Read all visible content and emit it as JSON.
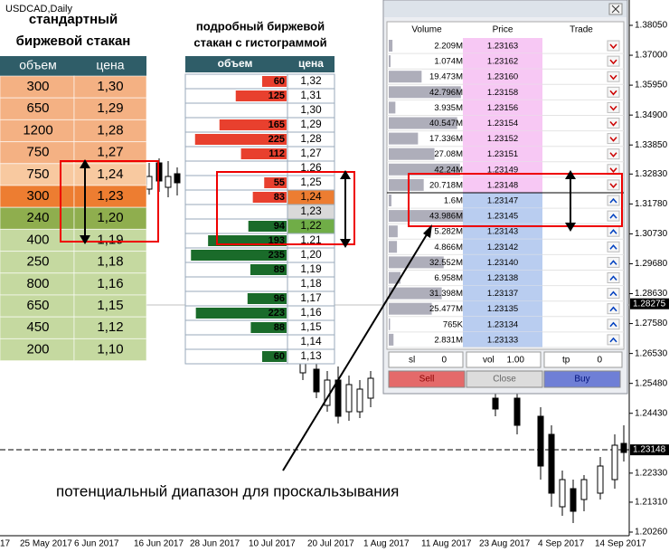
{
  "chart": {
    "symbol": "USDCAD,Daily",
    "price_labels": [
      {
        "value": 1.3805,
        "label": "1.38050"
      },
      {
        "value": 1.37,
        "label": "1.37000"
      },
      {
        "value": 1.3595,
        "label": "1.35950"
      },
      {
        "value": 1.349,
        "label": "1.34900"
      },
      {
        "value": 1.3385,
        "label": "1.33850"
      },
      {
        "value": 1.3283,
        "label": "1.32830"
      },
      {
        "value": 1.3178,
        "label": "1.31780"
      },
      {
        "value": 1.3073,
        "label": "1.30730"
      },
      {
        "value": 1.2968,
        "label": "1.29680"
      },
      {
        "value": 1.2863,
        "label": "1.28630"
      },
      {
        "value": 1.2758,
        "label": "1.27580"
      },
      {
        "value": 1.2653,
        "label": "1.26530"
      },
      {
        "value": 1.2548,
        "label": "1.25480"
      },
      {
        "value": 1.2443,
        "label": "1.24430"
      },
      {
        "value": 1.2233,
        "label": "1.22330"
      },
      {
        "value": 1.2131,
        "label": "1.21310"
      },
      {
        "value": 1.2026,
        "label": "1.20260"
      }
    ],
    "current_price": {
      "value": 1.28275,
      "label": "1.28275"
    },
    "bid_price": {
      "value": 1.23148,
      "label": "1.23148"
    },
    "dates": [
      "17",
      "25 May 2017",
      "6 Jun 2017",
      "16 Jun 2017",
      "28 Jun 2017",
      "10 Jul 2017",
      "20 Jul 2017",
      "1 Aug 2017",
      "11 Aug 2017",
      "23 Aug 2017",
      "4 Sep 2017",
      "14 Sep 2017"
    ]
  },
  "standard_book": {
    "title_lines": [
      "стандартный",
      "биржевой стакан"
    ],
    "headers": [
      "объем",
      "цена"
    ],
    "rows": [
      {
        "volume": 300,
        "price": "1,30",
        "color": "#f4b183"
      },
      {
        "volume": 650,
        "price": "1,29",
        "color": "#f4b183"
      },
      {
        "volume": 1200,
        "price": "1,28",
        "color": "#f4b183"
      },
      {
        "volume": 750,
        "price": "1,27",
        "color": "#f4b183"
      },
      {
        "volume": 750,
        "price": "1,24",
        "color": "#f8c9a0"
      },
      {
        "volume": 300,
        "price": "1,23",
        "color": "#ed7d31"
      },
      {
        "volume": 240,
        "price": "1,20",
        "color": "#8fae4e"
      },
      {
        "volume": 400,
        "price": "1,19",
        "color": "#c5d9a0"
      },
      {
        "volume": 250,
        "price": "1,18",
        "color": "#c5d9a0"
      },
      {
        "volume": 800,
        "price": "1,16",
        "color": "#c5d9a0"
      },
      {
        "volume": 650,
        "price": "1,15",
        "color": "#c5d9a0"
      },
      {
        "volume": 450,
        "price": "1,12",
        "color": "#c5d9a0"
      },
      {
        "volume": 200,
        "price": "1,10",
        "color": "#c5d9a0"
      }
    ]
  },
  "detailed_book": {
    "title_lines": [
      "подробный биржевой",
      "стакан с гистограммой"
    ],
    "headers": [
      "объем",
      "цена"
    ],
    "ask_color": "#e8402e",
    "bid_color": "#1a6b2a",
    "rows": [
      {
        "volume": 60,
        "price": "1,32",
        "side": "ask"
      },
      {
        "volume": 125,
        "price": "1,31",
        "side": "ask"
      },
      {
        "volume": null,
        "price": "1,30",
        "side": "ask"
      },
      {
        "volume": 165,
        "price": "1,29",
        "side": "ask"
      },
      {
        "volume": 225,
        "price": "1,28",
        "side": "ask"
      },
      {
        "volume": 112,
        "price": "1,27",
        "side": "ask"
      },
      {
        "volume": null,
        "price": "1,26",
        "side": "ask"
      },
      {
        "volume": 55,
        "price": "1,25",
        "side": "ask"
      },
      {
        "volume": 83,
        "price": "1,24",
        "side": "ask",
        "price_color": "#ed7d31"
      },
      {
        "volume": null,
        "price": "1,23",
        "side": "ask",
        "price_color": "#d9d9d9"
      },
      {
        "volume": 94,
        "price": "1,22",
        "side": "bid",
        "price_color": "#70ad47"
      },
      {
        "volume": 193,
        "price": "1,21",
        "side": "bid"
      },
      {
        "volume": 235,
        "price": "1,20",
        "side": "bid"
      },
      {
        "volume": 89,
        "price": "1,19",
        "side": "bid"
      },
      {
        "volume": null,
        "price": "1,18",
        "side": "bid"
      },
      {
        "volume": 96,
        "price": "1,17",
        "side": "bid"
      },
      {
        "volume": 223,
        "price": "1,16",
        "side": "bid"
      },
      {
        "volume": 88,
        "price": "1,15",
        "side": "bid"
      },
      {
        "volume": null,
        "price": "1,14",
        "side": "bid"
      },
      {
        "volume": 60,
        "price": "1,13",
        "side": "bid"
      }
    ]
  },
  "dom": {
    "headers": [
      "Volume",
      "Price",
      "Trade"
    ],
    "ask_color": "#f7c8f4",
    "bid_color": "#b9cdf0",
    "rows": [
      {
        "volume": {
          "value": 2.209,
          "label": "2.209M"
        },
        "price": "1.23163",
        "side": "ask"
      },
      {
        "volume": {
          "value": 1.074,
          "label": "1.074M"
        },
        "price": "1.23162",
        "side": "ask"
      },
      {
        "volume": {
          "value": 19.473,
          "label": "19.473M"
        },
        "price": "1.23160",
        "side": "ask"
      },
      {
        "volume": {
          "value": 42.796,
          "label": "42.796M"
        },
        "price": "1.23158",
        "side": "ask"
      },
      {
        "volume": {
          "value": 3.935,
          "label": "3.935M"
        },
        "price": "1.23156",
        "side": "ask"
      },
      {
        "volume": {
          "value": 40.547,
          "label": "40.547M"
        },
        "price": "1.23154",
        "side": "ask"
      },
      {
        "volume": {
          "value": 17.336,
          "label": "17.336M"
        },
        "price": "1.23152",
        "side": "ask"
      },
      {
        "volume": {
          "value": 27.08,
          "label": "27.08M"
        },
        "price": "1.23151",
        "side": "ask"
      },
      {
        "volume": {
          "value": 42.24,
          "label": "42.24M"
        },
        "price": "1.23149",
        "side": "ask"
      },
      {
        "volume": {
          "value": 20.718,
          "label": "20.718M"
        },
        "price": "1.23148",
        "side": "ask"
      },
      {
        "volume": {
          "value": 1.6,
          "label": "1.6M"
        },
        "price": "1.23147",
        "side": "bid"
      },
      {
        "volume": {
          "value": 43.986,
          "label": "43.986M"
        },
        "price": "1.23145",
        "side": "bid"
      },
      {
        "volume": {
          "value": 5.282,
          "label": "5.282M"
        },
        "price": "1.23143",
        "side": "bid"
      },
      {
        "volume": {
          "value": 4.866,
          "label": "4.866M"
        },
        "price": "1.23142",
        "side": "bid"
      },
      {
        "volume": {
          "value": 32.552,
          "label": "32.552M"
        },
        "price": "1.23140",
        "side": "bid"
      },
      {
        "volume": {
          "value": 6.958,
          "label": "6.958M"
        },
        "price": "1.23138",
        "side": "bid"
      },
      {
        "volume": {
          "value": 31.398,
          "label": "31.398M"
        },
        "price": "1.23137",
        "side": "bid"
      },
      {
        "volume": {
          "value": 25.477,
          "label": "25.477M"
        },
        "price": "1.23135",
        "side": "bid"
      },
      {
        "volume": {
          "value": 0.765,
          "label": "765K"
        },
        "price": "1.23134",
        "side": "bid"
      },
      {
        "volume": {
          "value": 2.831,
          "label": "2.831M"
        },
        "price": "1.23133",
        "side": "bid"
      }
    ],
    "sl_label": "sl",
    "sl": 0,
    "vol_label": "vol",
    "vol": "1.00",
    "tp_label": "tp",
    "tp": 0,
    "buttons": [
      "Sell",
      "Close",
      "Buy"
    ]
  },
  "annotation": "потенциальный диапазон для проскальзывания"
}
